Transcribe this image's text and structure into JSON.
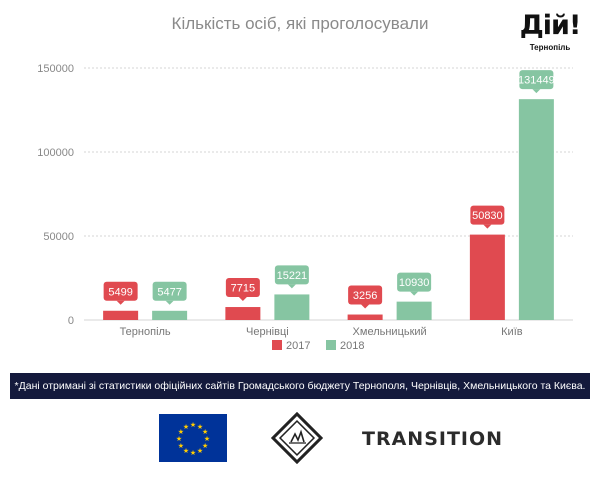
{
  "header": {
    "brand_name": "Дій!",
    "brand_city": "Тернопіль"
  },
  "chart_data": {
    "type": "bar",
    "title": "Кількість осіб, які проголосували",
    "categories": [
      "Тернопіль",
      "Чернівці",
      "Хмельницький",
      "Київ"
    ],
    "series": [
      {
        "name": "2017",
        "color": "#e04a50",
        "values": [
          5499,
          7715,
          3256,
          50830
        ]
      },
      {
        "name": "2018",
        "color": "#86c5a2",
        "values": [
          5477,
          15221,
          10930,
          131449
        ]
      }
    ],
    "yticks": [
      0,
      50000,
      100000,
      150000
    ],
    "ylim": [
      0,
      150000
    ],
    "grid": true,
    "legend": "bottom-center"
  },
  "footnote": "*Дані отримані зі статистики офіційних сайтів Громадського бюджету Тернополя, Чернівців, Хмельницького та Києва.",
  "partners": {
    "transition": "TRANSITION"
  }
}
